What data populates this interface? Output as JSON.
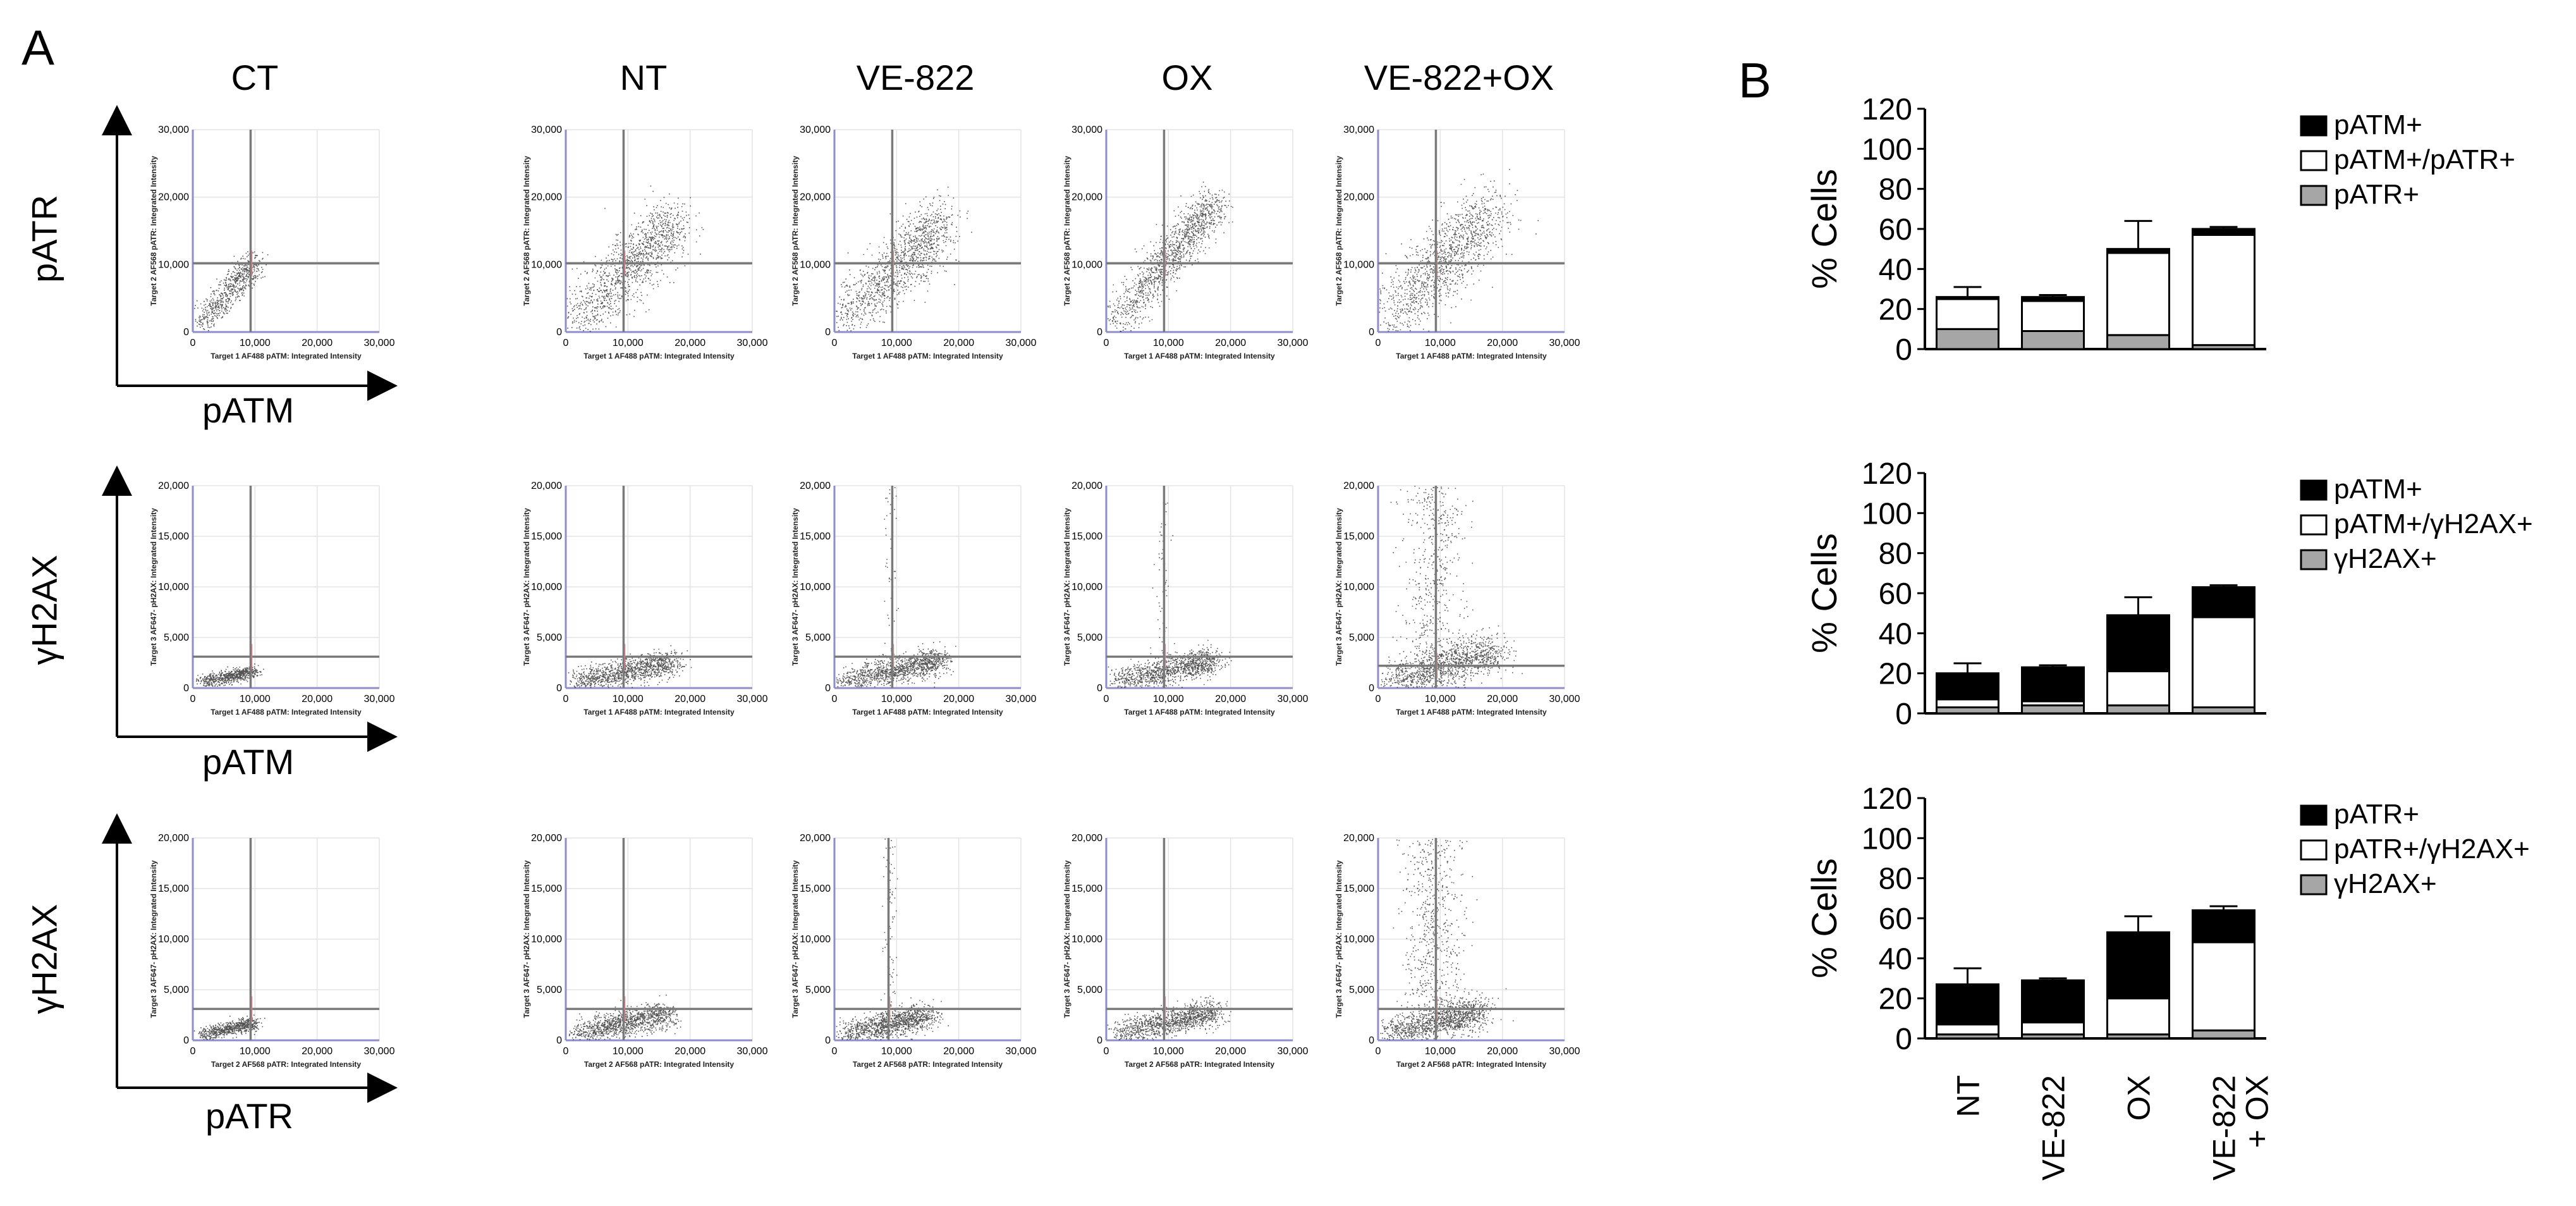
{
  "panel_a": {
    "label": "A",
    "columns": [
      "CT",
      "NT",
      "VE-822",
      "OX",
      "VE-822+OX"
    ],
    "rows": [
      {
        "x_axis": "pATM",
        "y_axis": "pATR",
        "x_inner": "Target 1 AF488 pATM: Integrated Intensity",
        "y_inner": "Target 2 AF568 pATR: Integrated Intensity",
        "x_ticks": [
          "0",
          "10,000",
          "20,000",
          "30,000"
        ],
        "y_ticks": [
          "0",
          "10,000",
          "20,000",
          "30,000"
        ]
      },
      {
        "x_axis": "pATM",
        "y_axis": "γH2AX",
        "x_inner": "Target 1 AF488 pATM: Integrated Intensity",
        "y_inner": "Target 3 AF647- pH2AX: Integrated Intensity",
        "x_ticks": [
          "0",
          "10,000",
          "20,000",
          "30,000"
        ],
        "y_ticks": [
          "0",
          "5,000",
          "10,000",
          "15,000",
          "20,000"
        ]
      },
      {
        "x_axis": "pATR",
        "y_axis": "γH2AX",
        "x_inner": "Target 2 AF568 pATR: Integrated Intensity",
        "y_inner": "Target 3 AF647- pH2AX: Integrated Intensity",
        "x_ticks": [
          "0",
          "10,000",
          "20,000",
          "30,000"
        ],
        "y_ticks": [
          "0",
          "5,000",
          "10,000",
          "15,000",
          "20,000"
        ]
      }
    ]
  },
  "panel_b": {
    "label": "B",
    "ylabel": "% Cells",
    "categories": [
      "NT",
      "VE-822",
      "OX",
      "VE-822\n+ OX"
    ],
    "colors": {
      "black": "#000000",
      "white": "#ffffff",
      "gray": "#a6a6a6"
    }
  },
  "chart_data": [
    {
      "type": "bar",
      "stacked": true,
      "categories": [
        "NT",
        "VE-822",
        "OX",
        "VE-822 + OX"
      ],
      "ylabel": "% Cells",
      "ylim": [
        0,
        120
      ],
      "yticks": [
        0,
        20,
        40,
        60,
        80,
        100,
        120
      ],
      "legend": "top-right",
      "series": [
        {
          "name": "pATR+",
          "color": "#a6a6a6",
          "values": [
            10,
            9,
            7,
            2
          ],
          "error": [
            3,
            2,
            2,
            1
          ]
        },
        {
          "name": "pATM+/pATR+",
          "color": "#ffffff",
          "values": [
            15,
            15,
            41,
            55
          ],
          "error": [
            0,
            0,
            0,
            0
          ]
        },
        {
          "name": "pATM+",
          "color": "#000000",
          "values": [
            1,
            2,
            2,
            3
          ],
          "error": [
            5,
            1,
            14,
            1
          ]
        }
      ]
    },
    {
      "type": "bar",
      "stacked": true,
      "categories": [
        "NT",
        "VE-822",
        "OX",
        "VE-822 + OX"
      ],
      "ylabel": "% Cells",
      "ylim": [
        0,
        120
      ],
      "yticks": [
        0,
        20,
        40,
        60,
        80,
        100,
        120
      ],
      "legend": "top-right",
      "series": [
        {
          "name": "γH2AX+",
          "color": "#a6a6a6",
          "values": [
            3,
            4,
            4,
            3
          ],
          "error": [
            1,
            1,
            2,
            1
          ]
        },
        {
          "name": "pATM+/γH2AX+",
          "color": "#ffffff",
          "values": [
            4,
            2,
            17,
            45
          ],
          "error": [
            0,
            0,
            0,
            0
          ]
        },
        {
          "name": "pATM+",
          "color": "#000000",
          "values": [
            13,
            17,
            28,
            15
          ],
          "error": [
            5,
            1,
            9,
            1
          ]
        }
      ]
    },
    {
      "type": "bar",
      "stacked": true,
      "categories": [
        "NT",
        "VE-822",
        "OX",
        "VE-822 + OX"
      ],
      "ylabel": "% Cells",
      "ylim": [
        0,
        120
      ],
      "yticks": [
        0,
        20,
        40,
        60,
        80,
        100,
        120
      ],
      "legend": "top-right",
      "series": [
        {
          "name": "γH2AX+",
          "color": "#a6a6a6",
          "values": [
            2,
            2,
            2,
            4
          ],
          "error": [
            1,
            1,
            2,
            1
          ]
        },
        {
          "name": "pATR+/γH2AX+",
          "color": "#ffffff",
          "values": [
            5,
            6,
            18,
            44
          ],
          "error": [
            0,
            0,
            0,
            0
          ]
        },
        {
          "name": "pATR+",
          "color": "#000000",
          "values": [
            20,
            21,
            33,
            16
          ],
          "error": [
            8,
            1,
            8,
            2
          ]
        }
      ]
    }
  ]
}
